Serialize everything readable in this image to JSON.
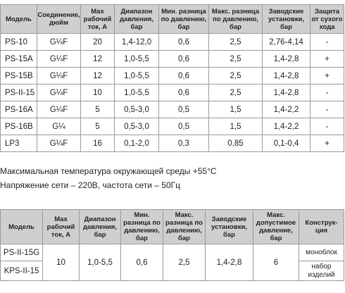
{
  "table1": {
    "headers": [
      "Модель",
      "Соединение, дюйм",
      "Max рабочий ток, А",
      "Диапазон давления, бар",
      "Мин. разница по давлению, бар",
      "Макс. разница по давлению, бар",
      "Заводские установки, бар",
      "Защита от сухого хода"
    ],
    "rows": [
      [
        "PS-10",
        "G¼F",
        "20",
        "1,4-12,0",
        "0,6",
        "2,5",
        "2,76-4,14",
        "-"
      ],
      [
        "PS-15A",
        "G¼F",
        "12",
        "1,0-5,5",
        "0,6",
        "2,5",
        "1,4-2,8",
        "+"
      ],
      [
        "PS-15B",
        "G¼F",
        "12",
        "1,0-5,5",
        "0,6",
        "2,5",
        "1,4-2,8",
        "+"
      ],
      [
        "PS-II-15",
        "G¼F",
        "10",
        "1,0-5,5",
        "0,6",
        "2,5",
        "1,4-2,8",
        "-"
      ],
      [
        "PS-16A",
        "G¼F",
        "5",
        "0,5-3,0",
        "0,5",
        "1,5",
        "1,4-2,2",
        "-"
      ],
      [
        "PS-16B",
        "G¼",
        "5",
        "0,5-3,0",
        "0,5",
        "1,5",
        "1,4-2,2",
        "-"
      ],
      [
        "LP3",
        "G¼F",
        "16",
        "0,1-2,0",
        "0,3",
        "0,85",
        "0,1-0,4",
        "+"
      ]
    ]
  },
  "notes": {
    "line1": "Максимальная температура окружающей среды +55°C",
    "line2": "Напряжение сети – 220В, частота сети – 50Гц"
  },
  "table2": {
    "headers": [
      "Модель",
      "Max рабочий ток, А",
      "Диапазон давления, бар",
      "Мин. разница по давлению, бар",
      "Макс. разница по давлению, бар",
      "Заводские установки, бар",
      "Макс. допустимое давление, бар",
      "Конструк- ция"
    ],
    "models": [
      "PS-II-15G",
      "KPS-II-15"
    ],
    "shared": {
      "current": "10",
      "range": "1,0-5,5",
      "min_diff": "0,6",
      "max_diff": "2,5",
      "factory": "1,4-2,8",
      "max_pressure": "6"
    },
    "constructions": [
      "моноблок",
      "набор изделий"
    ]
  }
}
